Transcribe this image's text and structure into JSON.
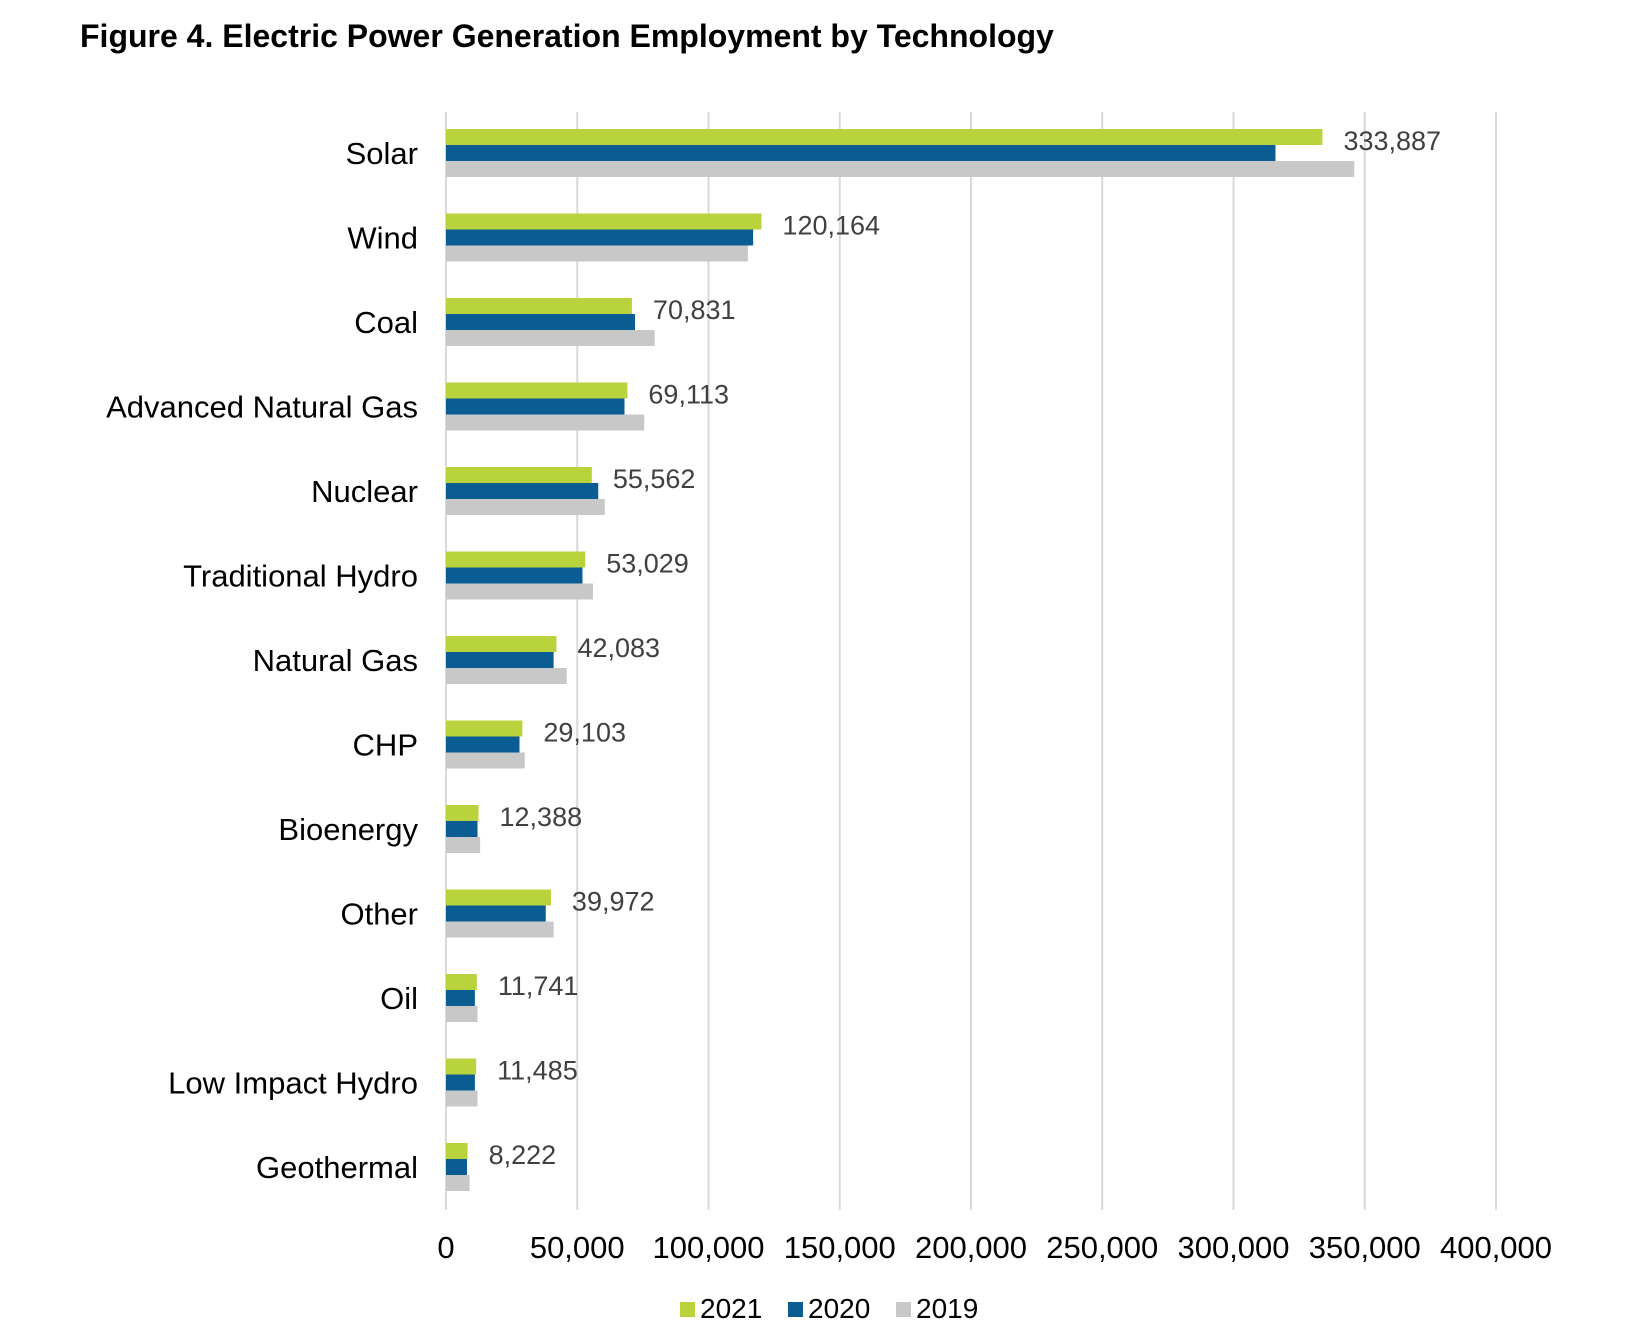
{
  "title": "Figure 4. Electric Power Generation Employment by Technology",
  "chart_data": {
    "type": "bar",
    "orientation": "horizontal",
    "categories": [
      "Solar",
      "Wind",
      "Coal",
      "Advanced Natural Gas",
      "Nuclear",
      "Traditional  Hydro",
      "Natural Gas",
      "CHP",
      "Bioenergy",
      "Other",
      "Oil",
      "Low Impact Hydro",
      "Geothermal"
    ],
    "series": [
      {
        "name": "2021",
        "color": "#b9d33c",
        "values": [
          333887,
          120164,
          70831,
          69113,
          55562,
          53029,
          42083,
          29103,
          12388,
          39972,
          11741,
          11485,
          8222
        ]
      },
      {
        "name": "2020",
        "color": "#0a5c93",
        "values": [
          316000,
          117000,
          72000,
          68000,
          58000,
          52000,
          41000,
          28000,
          12000,
          38000,
          11000,
          11000,
          8000
        ]
      },
      {
        "name": "2019",
        "color": "#c8c8c8",
        "values": [
          346000,
          115000,
          79500,
          75500,
          60500,
          56000,
          46000,
          30000,
          13000,
          41000,
          12000,
          12000,
          9000
        ]
      }
    ],
    "data_labels": [
      "333,887",
      "120,164",
      "70,831",
      "69,113",
      "55,562",
      "53,029",
      "42,083",
      "29,103",
      "12,388",
      "39,972",
      "11,741",
      "11,485",
      "8,222"
    ],
    "xlim": [
      0,
      400000
    ],
    "xticks": [
      0,
      50000,
      100000,
      150000,
      200000,
      250000,
      300000,
      350000,
      400000
    ],
    "xtick_labels": [
      "0",
      "50,000",
      "100,000",
      "150,000",
      "200,000",
      "250,000",
      "300,000",
      "350,000",
      "400,000"
    ],
    "grid": true,
    "legend": [
      "2021",
      "2020",
      "2019"
    ],
    "legend_position": "bottom"
  }
}
